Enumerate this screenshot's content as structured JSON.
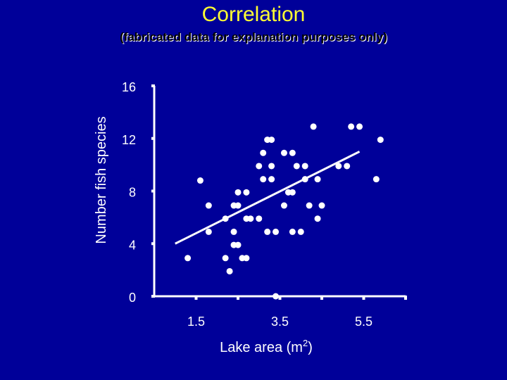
{
  "title": "Correlation",
  "subtitle": "(fabricated data for explanation purposes only)",
  "colors": {
    "background": "#000099",
    "title": "#FFFF33",
    "foreground": "#FFFFFF"
  },
  "chart_data": {
    "type": "scatter",
    "xlabel": "Lake area (m",
    "xlabel_sup": "2",
    "xlabel_close": ")",
    "ylabel": "Number fish species",
    "xticks": [
      "1.5",
      "3.5",
      "5.5"
    ],
    "yticks": [
      "0",
      "4",
      "8",
      "12",
      "16"
    ],
    "xlim": [
      0.5,
      6.5
    ],
    "ylim": [
      0,
      16
    ],
    "trendline": {
      "x": [
        1.0,
        5.4
      ],
      "y": [
        4.0,
        11.0
      ]
    },
    "points": [
      {
        "x": 1.3,
        "y": 2.9
      },
      {
        "x": 1.6,
        "y": 8.8
      },
      {
        "x": 1.8,
        "y": 6.9
      },
      {
        "x": 1.8,
        "y": 4.9
      },
      {
        "x": 2.2,
        "y": 5.9
      },
      {
        "x": 2.2,
        "y": 2.9
      },
      {
        "x": 2.3,
        "y": 1.9
      },
      {
        "x": 2.4,
        "y": 4.9
      },
      {
        "x": 2.4,
        "y": 3.9
      },
      {
        "x": 2.4,
        "y": 6.9
      },
      {
        "x": 2.5,
        "y": 6.9
      },
      {
        "x": 2.5,
        "y": 7.9
      },
      {
        "x": 2.5,
        "y": 3.9
      },
      {
        "x": 2.6,
        "y": 2.9
      },
      {
        "x": 2.7,
        "y": 7.9
      },
      {
        "x": 2.7,
        "y": 5.9
      },
      {
        "x": 2.7,
        "y": 2.9
      },
      {
        "x": 2.8,
        "y": 5.9
      },
      {
        "x": 3.0,
        "y": 5.9
      },
      {
        "x": 3.0,
        "y": 9.9
      },
      {
        "x": 3.1,
        "y": 10.9
      },
      {
        "x": 3.1,
        "y": 8.9
      },
      {
        "x": 3.2,
        "y": 11.9
      },
      {
        "x": 3.2,
        "y": 4.9
      },
      {
        "x": 3.3,
        "y": 9.9
      },
      {
        "x": 3.3,
        "y": 8.9
      },
      {
        "x": 3.3,
        "y": 11.9
      },
      {
        "x": 3.4,
        "y": 4.9
      },
      {
        "x": 3.4,
        "y": 0.0
      },
      {
        "x": 3.6,
        "y": 6.9
      },
      {
        "x": 3.6,
        "y": 10.9
      },
      {
        "x": 3.7,
        "y": 7.9
      },
      {
        "x": 3.8,
        "y": 10.9
      },
      {
        "x": 3.8,
        "y": 7.9
      },
      {
        "x": 3.8,
        "y": 4.9
      },
      {
        "x": 3.9,
        "y": 9.9
      },
      {
        "x": 4.0,
        "y": 4.9
      },
      {
        "x": 4.1,
        "y": 9.9
      },
      {
        "x": 4.1,
        "y": 8.9
      },
      {
        "x": 4.2,
        "y": 6.9
      },
      {
        "x": 4.3,
        "y": 12.9
      },
      {
        "x": 4.4,
        "y": 5.9
      },
      {
        "x": 4.4,
        "y": 8.9
      },
      {
        "x": 4.5,
        "y": 6.9
      },
      {
        "x": 4.9,
        "y": 9.9
      },
      {
        "x": 5.1,
        "y": 9.9
      },
      {
        "x": 5.2,
        "y": 12.9
      },
      {
        "x": 5.4,
        "y": 12.9
      },
      {
        "x": 5.8,
        "y": 8.9
      },
      {
        "x": 5.9,
        "y": 11.9
      }
    ]
  }
}
